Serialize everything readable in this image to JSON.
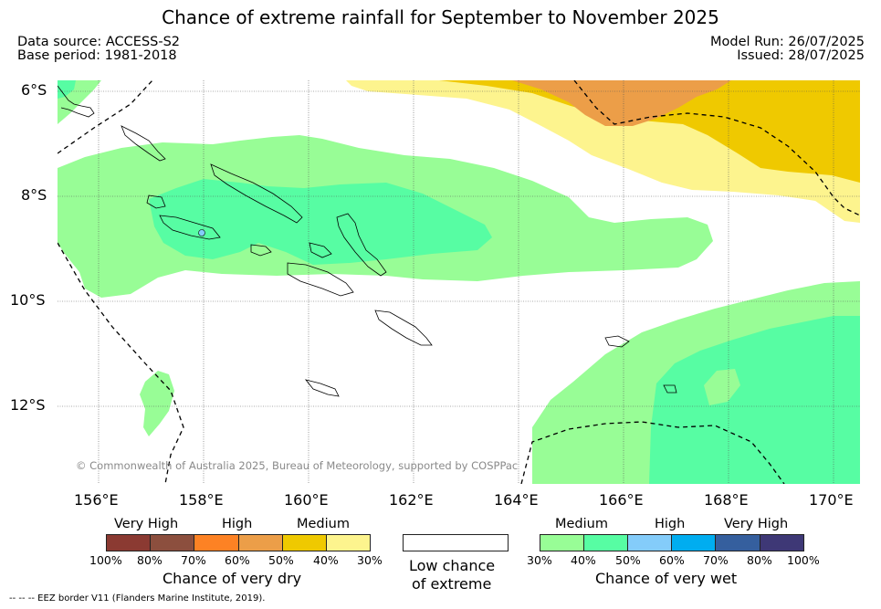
{
  "title": "Chance of extreme rainfall for September to November 2025",
  "data_source": "Data source: ACCESS-S2",
  "base_period": "Base period: 1981-2018",
  "model_run": "Model Run: 26/07/2025",
  "issued": "Issued: 28/07/2025",
  "lat_labels": [
    "6°S",
    "8°S",
    "10°S",
    "12°S"
  ],
  "lon_labels": [
    "156°E",
    "158°E",
    "160°E",
    "162°E",
    "164°E",
    "166°E",
    "168°E",
    "170°E"
  ],
  "copyright": "© Commonwealth of Australia 2025, Bureau of Meteorology, supported by COSPPac",
  "dry_legend": {
    "headers": [
      "Very High",
      "High",
      "Medium"
    ],
    "ticks": [
      "100%",
      "80%",
      "70%",
      "60%",
      "50%",
      "40%",
      "30%"
    ],
    "title": "Chance of very dry",
    "colors": [
      "#8b3a32",
      "#8c4f3e",
      "#fd8224",
      "#ec9e48",
      "#efc900",
      "#fdf48e"
    ]
  },
  "low_legend": {
    "title_line1": "Low chance",
    "title_line2": "of extreme",
    "color": "#ffffff"
  },
  "wet_legend": {
    "headers": [
      "Medium",
      "High",
      "Very High"
    ],
    "ticks": [
      "30%",
      "40%",
      "50%",
      "60%",
      "70%",
      "80%",
      "100%"
    ],
    "title": "Chance of very wet",
    "colors": [
      "#98fd96",
      "#57fda3",
      "#84ccfa",
      "#00adf0",
      "#355f9e",
      "#3e3876"
    ]
  },
  "eez_note": "--  --  -- EEZ border V11 (Flanders Marine Institute, 2019)."
}
